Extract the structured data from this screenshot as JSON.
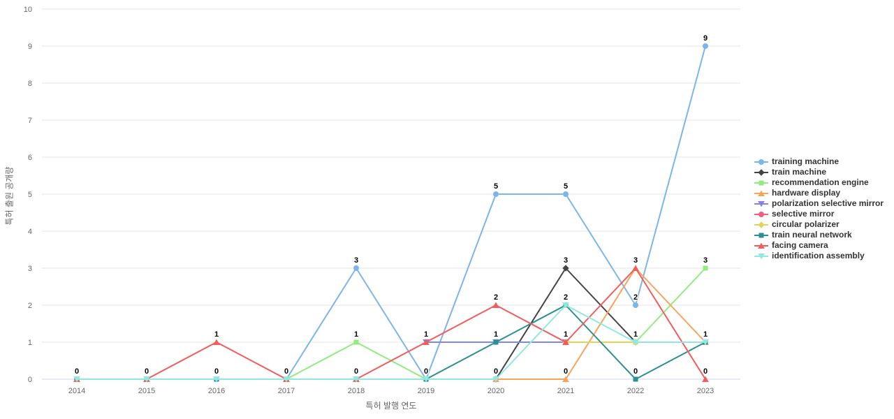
{
  "chart_data": {
    "type": "line",
    "title": "",
    "xlabel": "특허 발행 연도",
    "ylabel": "특허 출원 공개량",
    "categories": [
      "2014",
      "2015",
      "2016",
      "2017",
      "2018",
      "2019",
      "2020",
      "2021",
      "2022",
      "2023"
    ],
    "ylim": [
      0,
      10
    ],
    "yticks": [
      0,
      1,
      2,
      3,
      4,
      5,
      6,
      7,
      8,
      9,
      10
    ],
    "grid": true,
    "data_labels": true,
    "legend_position": "right",
    "series": [
      {
        "name": "training machine",
        "color": "#7cb5ec",
        "marker": "circle",
        "values": [
          0,
          0,
          0,
          0,
          3,
          0,
          5,
          5,
          2,
          9
        ]
      },
      {
        "name": "train machine",
        "color": "#434348",
        "marker": "diamond",
        "values": [
          null,
          null,
          null,
          null,
          null,
          null,
          0,
          3,
          1,
          null
        ]
      },
      {
        "name": "recommendation engine",
        "color": "#90ed7d",
        "marker": "square",
        "values": [
          null,
          null,
          null,
          0,
          1,
          0,
          null,
          null,
          1,
          3
        ]
      },
      {
        "name": "hardware display",
        "color": "#f7a35c",
        "marker": "triangle",
        "values": [
          null,
          null,
          null,
          null,
          null,
          null,
          0,
          0,
          3,
          1
        ]
      },
      {
        "name": "polarization selective mirror",
        "color": "#8085e9",
        "marker": "triangle-down",
        "values": [
          null,
          null,
          null,
          null,
          null,
          1,
          1,
          1,
          null,
          null
        ]
      },
      {
        "name": "selective mirror",
        "color": "#f15c80",
        "marker": "circle",
        "values": [
          null,
          null,
          null,
          null,
          null,
          null,
          null,
          1,
          null,
          null
        ]
      },
      {
        "name": "circular polarizer",
        "color": "#e4d354",
        "marker": "diamond",
        "values": [
          null,
          null,
          null,
          null,
          null,
          null,
          null,
          1,
          1,
          null
        ]
      },
      {
        "name": "train neural network",
        "color": "#2b908f",
        "marker": "square",
        "values": [
          0,
          0,
          0,
          0,
          0,
          0,
          1,
          2,
          0,
          1
        ]
      },
      {
        "name": "facing camera",
        "color": "#f45b5b",
        "marker": "triangle",
        "values": [
          0,
          0,
          1,
          0,
          0,
          1,
          2,
          1,
          3,
          0
        ]
      },
      {
        "name": "identification assembly",
        "color": "#91e8e1",
        "marker": "triangle-down",
        "values": [
          0,
          0,
          0,
          0,
          0,
          0,
          0,
          2,
          1,
          1
        ]
      }
    ]
  },
  "style_colors": {
    "gridline": "#e6e6e6",
    "axis_line": "#ccd6eb",
    "tick_label": "#666666",
    "axis_title": "#666666",
    "legend_text": "#333333",
    "data_label": "#000000"
  }
}
